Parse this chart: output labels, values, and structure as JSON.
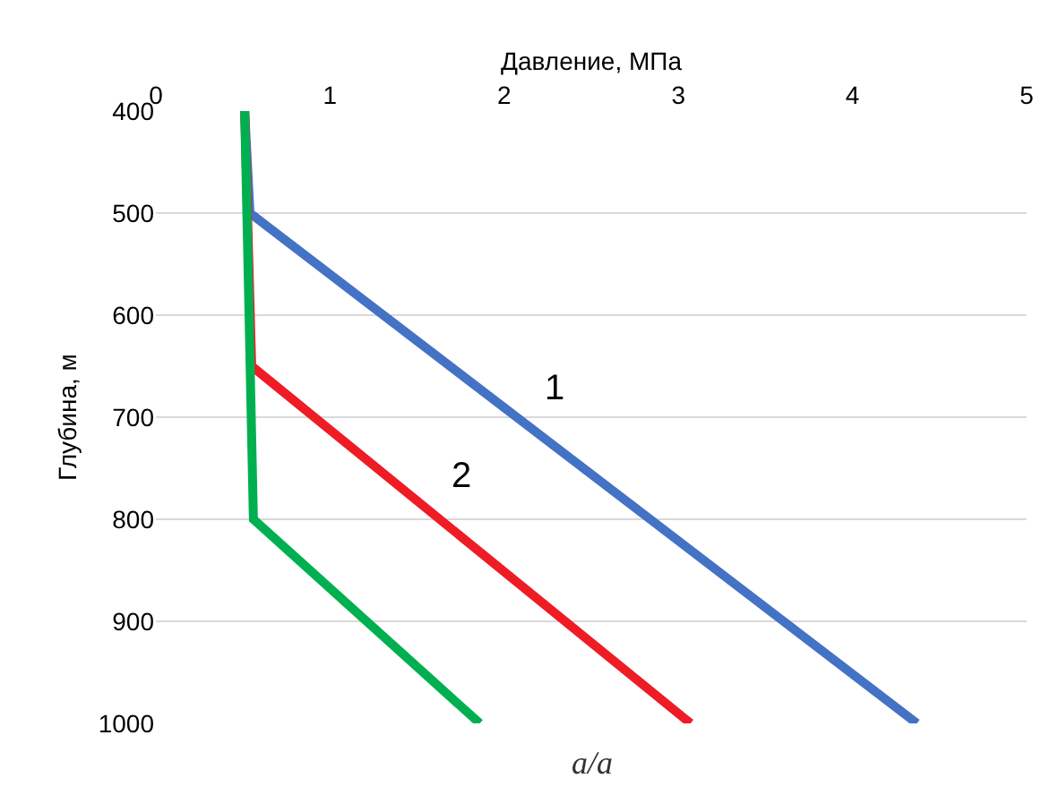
{
  "chart_data": {
    "type": "line",
    "xlabel": "Давление, МПа",
    "ylabel": "Глубина, м",
    "xlim": [
      0,
      5
    ],
    "xticks": [
      0,
      1,
      2,
      3,
      4,
      5
    ],
    "ylim": [
      1000,
      400
    ],
    "yticks": [
      400,
      500,
      600,
      700,
      800,
      900,
      1000
    ],
    "grid": "y",
    "line_style": "solid",
    "marker": "none",
    "series": [
      {
        "name": "1",
        "color": "#4472c4",
        "x": [
          0.51,
          0.54,
          4.37
        ],
        "values": [
          400,
          500,
          1000
        ]
      },
      {
        "name": "2",
        "color": "#ee1c25",
        "x": [
          0.51,
          0.55,
          3.07
        ],
        "values": [
          400,
          650,
          1000
        ]
      },
      {
        "color": "#00b050",
        "x": [
          0.51,
          0.56,
          1.86
        ],
        "values": [
          400,
          800,
          1000
        ]
      }
    ],
    "annotations": [
      "a/a"
    ]
  }
}
